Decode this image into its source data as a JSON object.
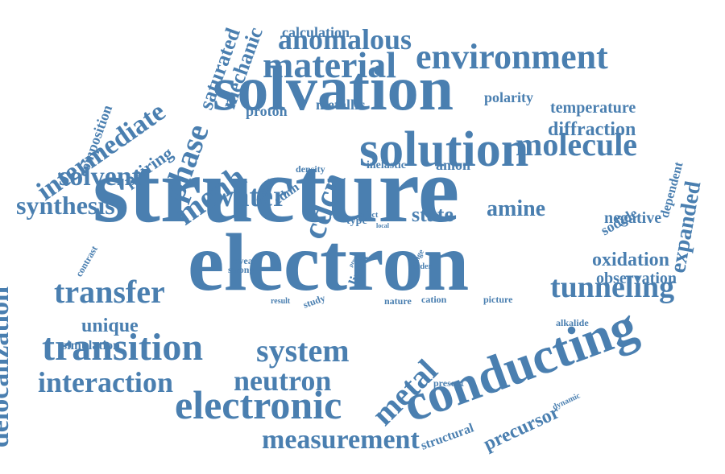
{
  "colors": {
    "word": "#4a7fb0",
    "background": "#ffffff"
  },
  "words": [
    "structure",
    "electron",
    "solvation",
    "solution",
    "conducting",
    "environment",
    "electronic",
    "transition",
    "material",
    "anomalous",
    "molecule",
    "tunneling",
    "transfer",
    "system",
    "neutron",
    "interaction",
    "measurement",
    "solvent",
    "synthesis",
    "water",
    "intermediate",
    "phase",
    "menh",
    "cdcn",
    "metal",
    "delocalization",
    "diffraction",
    "temperature",
    "amine",
    "state",
    "oxidation",
    "observation",
    "expanded",
    "precursor",
    "unique",
    "calculation",
    "saturated",
    "mechanic",
    "composition",
    "pairing",
    "polarity",
    "metallic",
    "proton",
    "negative",
    "sodide",
    "dependent",
    "simulation",
    "structural",
    "linon",
    "anion",
    "inelastic",
    "cdnh",
    "mixed",
    "density",
    "contrast",
    "alkalide",
    "present",
    "dynamic",
    "study",
    "result",
    "nature",
    "cation",
    "picture",
    "reveal",
    "strong",
    "effect",
    "type",
    "local",
    "range",
    "order",
    "proc"
  ]
}
